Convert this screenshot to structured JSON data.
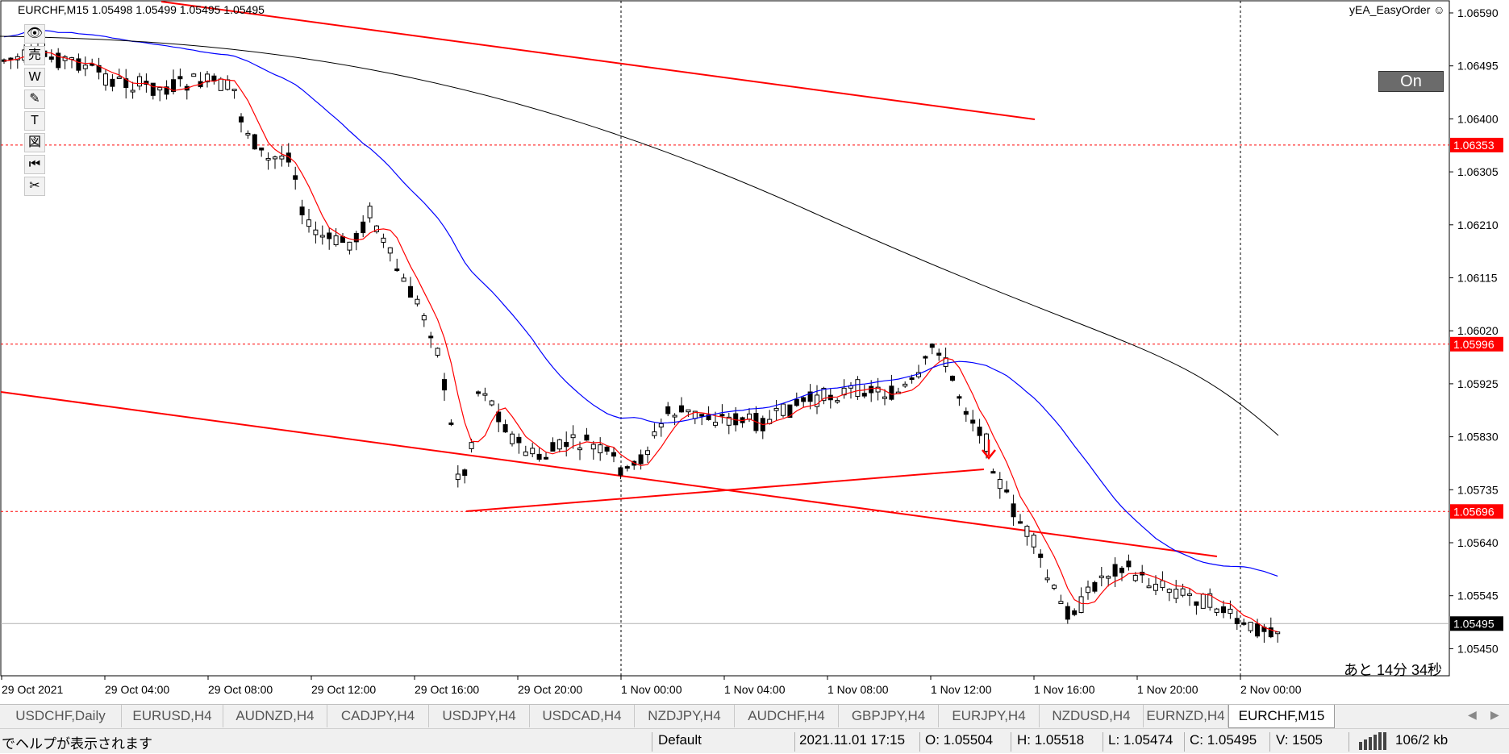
{
  "chart": {
    "title": "EURCHF,M15  1.05498 1.05499 1.05495 1.05495",
    "ea_name": "yEA_EasyOrder ☺",
    "on_button": "On",
    "countdown": "あと 14分 34秒",
    "price_labels": [
      "1.06590",
      "1.06495",
      "1.06400",
      "1.06305",
      "1.06210",
      "1.06115",
      "1.06020",
      "1.05925",
      "1.05830",
      "1.05735",
      "1.05640",
      "1.05545",
      "1.05450"
    ],
    "highlight_prices": [
      "1.06353",
      "1.05996",
      "1.05696"
    ],
    "current_price": "1.05495",
    "time_labels": [
      "29 Oct 2021",
      "29 Oct 04:00",
      "29 Oct 08:00",
      "29 Oct 12:00",
      "29 Oct 16:00",
      "29 Oct 20:00",
      "1 Nov 00:00",
      "1 Nov 04:00",
      "1 Nov 08:00",
      "1 Nov 12:00",
      "1 Nov 16:00",
      "1 Nov 20:00",
      "2 Nov 00:00"
    ],
    "colors": {
      "hline": "#ff0000",
      "price_label_bg": "#ff0000",
      "current_bg": "#000000",
      "fast_ma": "#ff0000",
      "mid_ma": "#0000ff",
      "slow_ma": "#000000"
    }
  },
  "toolbar": {
    "items": [
      {
        "name": "eye-icon",
        "glyph": "👁"
      },
      {
        "name": "sell-icon",
        "glyph": "売"
      },
      {
        "name": "w-icon",
        "glyph": "W"
      },
      {
        "name": "pencil-icon",
        "glyph": "✎"
      },
      {
        "name": "text-icon",
        "glyph": "T"
      },
      {
        "name": "figure-icon",
        "glyph": "図"
      },
      {
        "name": "rewind-icon",
        "glyph": "⏮"
      },
      {
        "name": "scissors-icon",
        "glyph": "✂"
      }
    ]
  },
  "tabs": {
    "items": [
      "USDCHF,Daily",
      "EURUSD,H4",
      "AUDNZD,H4",
      "CADJPY,H4",
      "USDJPY,H4",
      "USDCAD,H4",
      "NZDJPY,H4",
      "AUDCHF,H4",
      "GBPJPY,H4",
      "EURJPY,H4",
      "NZDUSD,H4",
      "EURNZD,H4",
      "EURCHF,M15"
    ],
    "active": "EURCHF,M15",
    "prev": "◀",
    "next": "▶"
  },
  "status": {
    "help": "でヘルプが表示されます",
    "profile": "Default",
    "datetime": "2021.11.01 17:15",
    "open": "O: 1.05504",
    "high": "H: 1.05518",
    "low": "L: 1.05474",
    "close": "C: 1.05495",
    "volume": "V: 1505",
    "traffic": "106/2 kb"
  }
}
